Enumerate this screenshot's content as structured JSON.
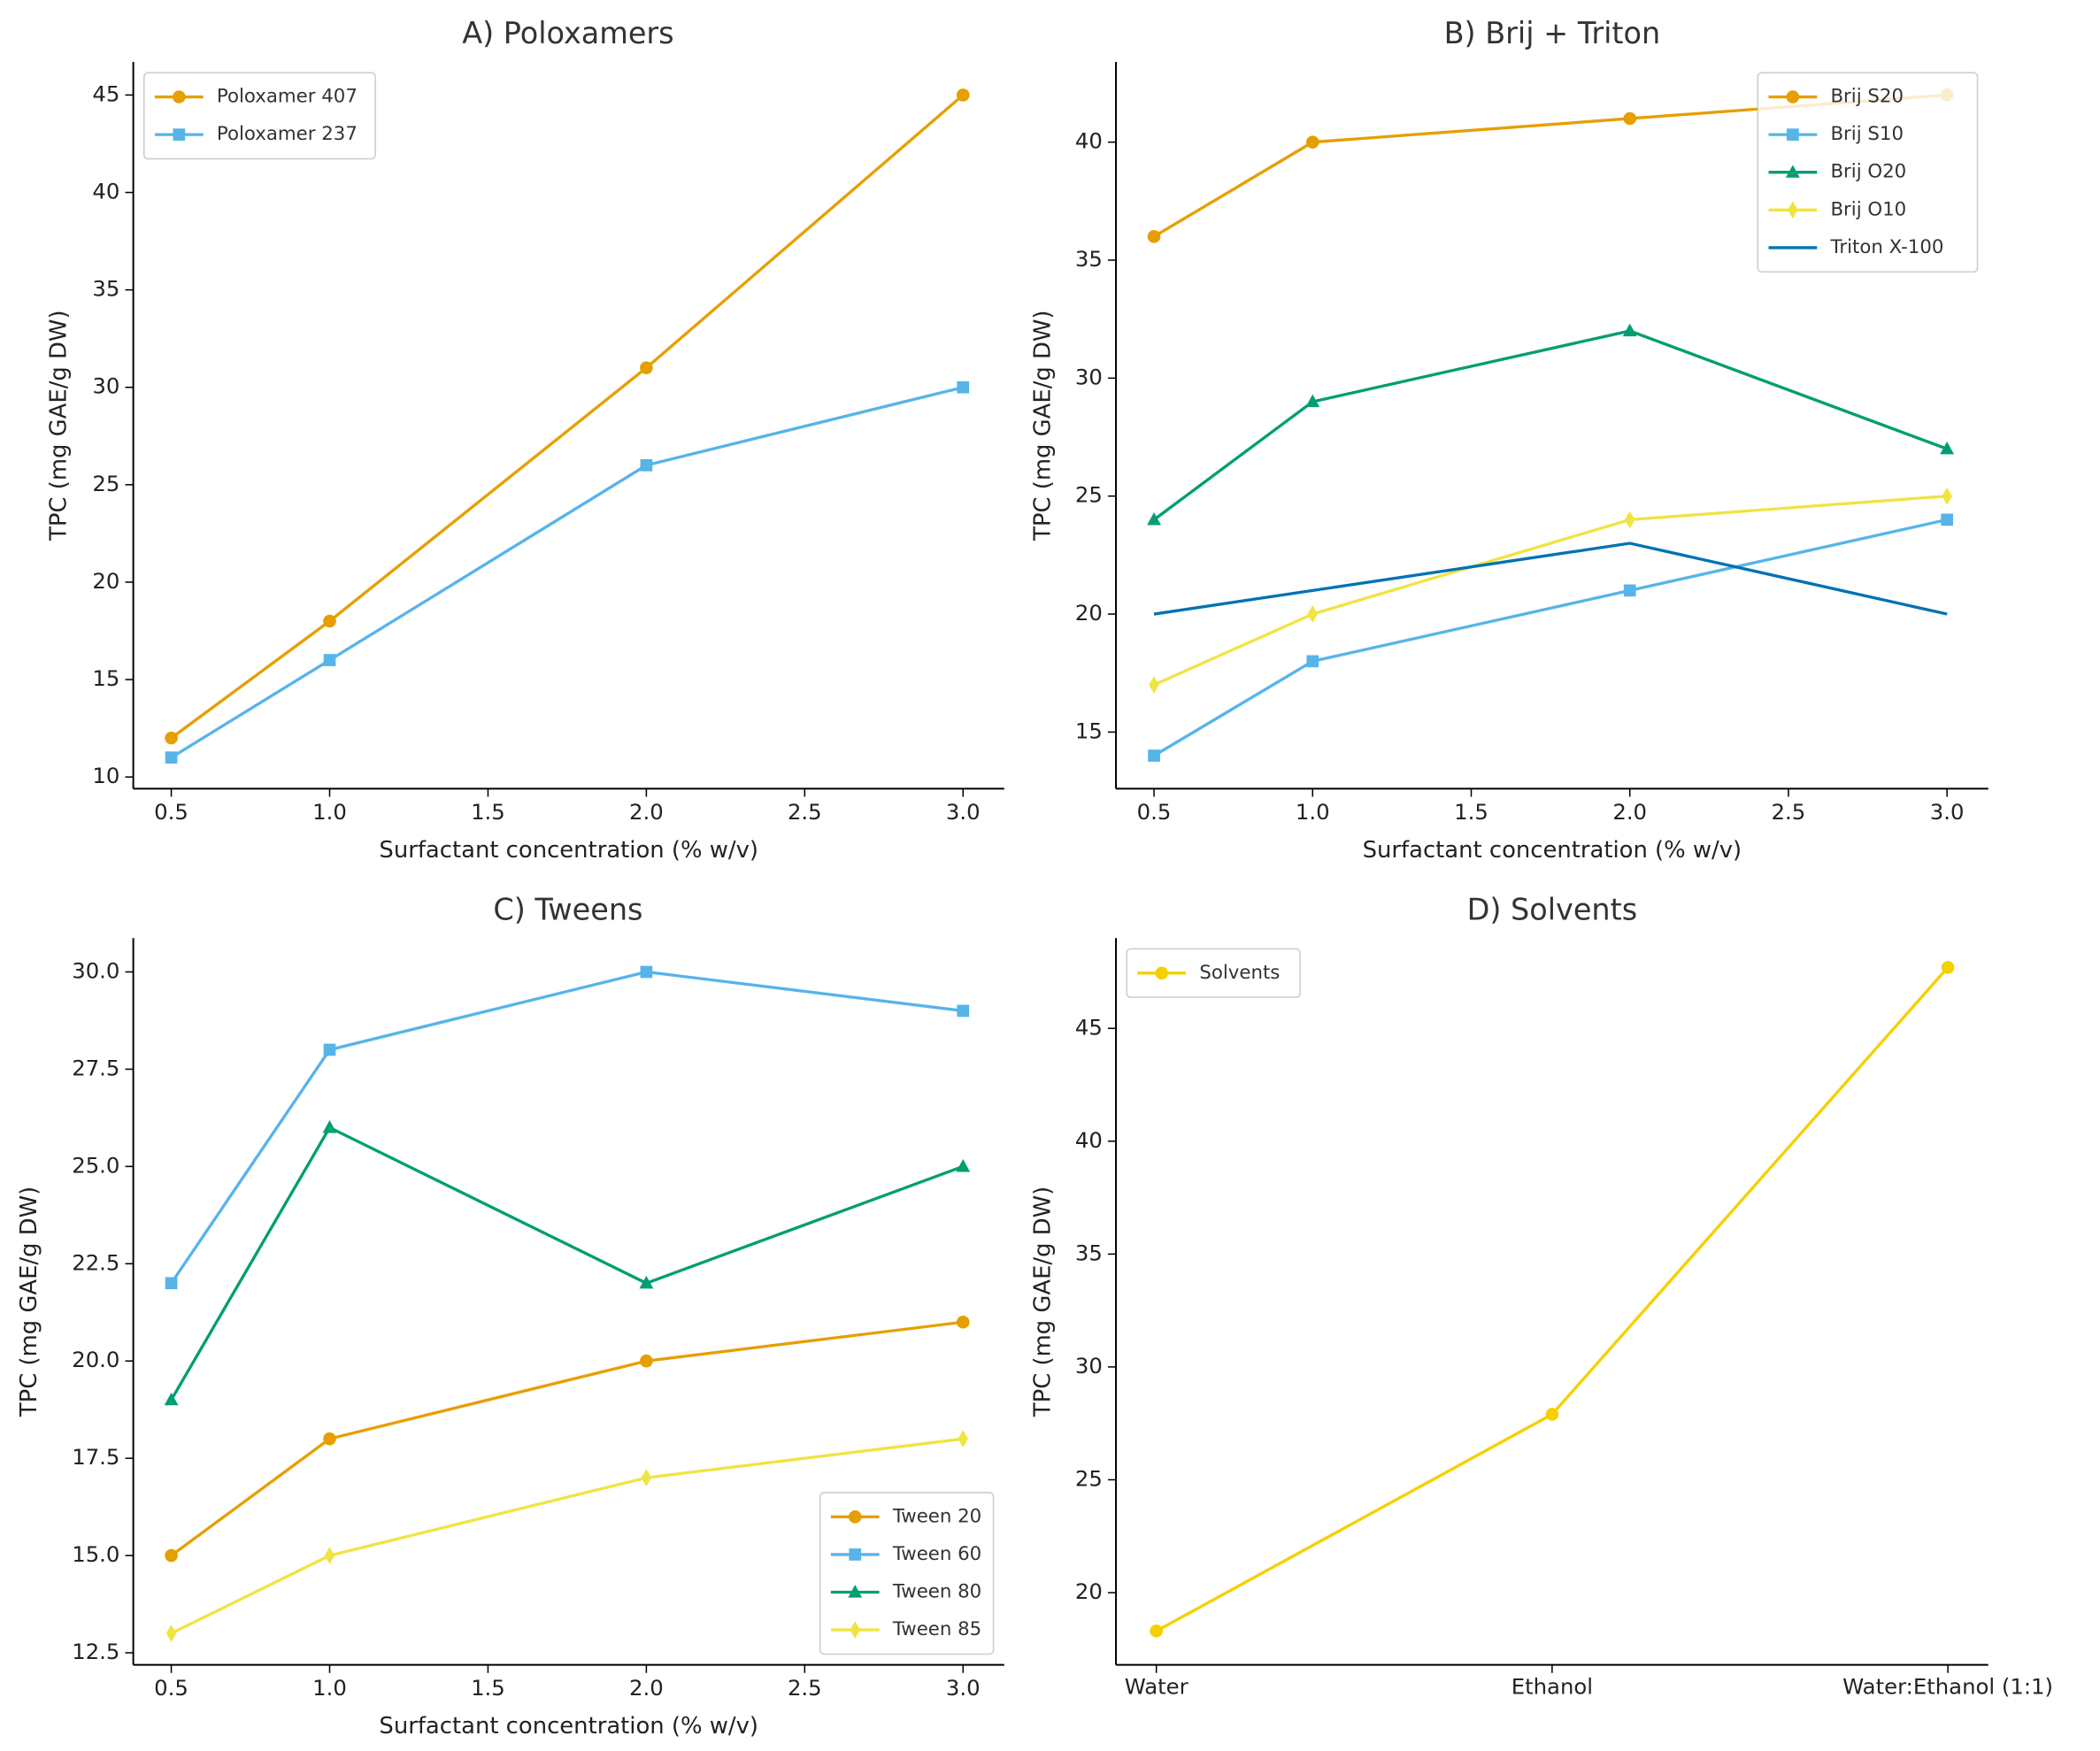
{
  "chart_data": [
    {
      "type": "line",
      "title": "A) Poloxamers",
      "xlabel": "Surfactant concentration (% w/v)",
      "ylabel": "TPC (mg GAE/g DW)",
      "x": [
        0.5,
        1,
        2,
        3
      ],
      "xlim": [
        0.38,
        3.13
      ],
      "ylim": [
        9.4,
        46.7
      ],
      "xticks": [
        0.5,
        {
          "value": 1,
          "label": "1.0"
        },
        1.5,
        {
          "value": 2,
          "label": "2.0"
        },
        2.5,
        {
          "value": 3,
          "label": "3.0"
        }
      ],
      "yticks": [
        10,
        15,
        20,
        25,
        30,
        35,
        40,
        45
      ],
      "legend": "upper left",
      "series": [
        {
          "name": "Poloxamer 407",
          "color": "#E69F00",
          "marker": "circle",
          "values": [
            12,
            18,
            31,
            45
          ]
        },
        {
          "name": "Poloxamer 237",
          "color": "#56B4E9",
          "marker": "square",
          "values": [
            11,
            16,
            26,
            30
          ]
        }
      ]
    },
    {
      "type": "line",
      "title": "B) Brij + Triton",
      "xlabel": "Surfactant concentration (% w/v)",
      "ylabel": "TPC (mg GAE/g DW)",
      "x": [
        0.5,
        1,
        2,
        3
      ],
      "xlim": [
        0.38,
        3.13
      ],
      "ylim": [
        12.6,
        43.4
      ],
      "xticks": [
        0.5,
        {
          "value": 1,
          "label": "1.0"
        },
        1.5,
        {
          "value": 2,
          "label": "2.0"
        },
        2.5,
        {
          "value": 3,
          "label": "3.0"
        }
      ],
      "yticks": [
        15,
        20,
        25,
        30,
        35,
        40
      ],
      "legend": "upper right",
      "series": [
        {
          "name": "Brij S20",
          "color": "#E69F00",
          "marker": "circle",
          "values": [
            36,
            40,
            41,
            42
          ]
        },
        {
          "name": "Brij S10",
          "color": "#56B4E9",
          "marker": "square",
          "values": [
            14,
            18,
            21,
            24
          ]
        },
        {
          "name": "Brij O20",
          "color": "#009E73",
          "marker": "triangle",
          "values": [
            24,
            29,
            32,
            27
          ]
        },
        {
          "name": "Brij O10",
          "color": "#F0E442",
          "marker": "diamond",
          "values": [
            17,
            20,
            24,
            25
          ]
        },
        {
          "name": "Triton X-100",
          "color": "#0072B2",
          "marker": "none",
          "values": [
            20,
            21,
            23,
            20
          ]
        }
      ]
    },
    {
      "type": "line",
      "title": "C) Tweens",
      "xlabel": "Surfactant concentration (% w/v)",
      "ylabel": "TPC (mg GAE/g DW)",
      "x": [
        0.5,
        1,
        2,
        3
      ],
      "xlim": [
        0.38,
        3.13
      ],
      "ylim": [
        12.19,
        30.87
      ],
      "xticks": [
        0.5,
        {
          "value": 1,
          "label": "1.0"
        },
        1.5,
        {
          "value": 2,
          "label": "2.0"
        },
        2.5,
        {
          "value": 3,
          "label": "3.0"
        }
      ],
      "yticks": [
        12.5,
        {
          "value": 15,
          "label": "15.0"
        },
        17.5,
        {
          "value": 20,
          "label": "20.0"
        },
        22.5,
        {
          "value": 25,
          "label": "25.0"
        },
        27.5,
        {
          "value": 30,
          "label": "30.0"
        }
      ],
      "legend": "lower right",
      "series": [
        {
          "name": "Tween 20",
          "color": "#E69F00",
          "marker": "circle",
          "values": [
            15,
            18,
            20,
            21
          ]
        },
        {
          "name": "Tween 60",
          "color": "#56B4E9",
          "marker": "square",
          "values": [
            22,
            28,
            30,
            29
          ]
        },
        {
          "name": "Tween 80",
          "color": "#009E73",
          "marker": "triangle",
          "values": [
            19,
            26,
            22,
            25
          ]
        },
        {
          "name": "Tween 85",
          "color": "#F0E442",
          "marker": "diamond",
          "values": [
            13,
            15,
            17,
            18
          ]
        }
      ]
    },
    {
      "type": "line",
      "title": "D) Solvents",
      "ylabel": "TPC (mg GAE/g DW)",
      "categories": [
        "Water",
        "Ethanol",
        "Water:Ethanol (1:1)"
      ],
      "ylim": [
        16.8,
        49.0
      ],
      "yticks": [
        20,
        25,
        30,
        35,
        40,
        45
      ],
      "legend": "upper left",
      "series": [
        {
          "name": "Solvents",
          "color": "#F5D000",
          "marker": "circle",
          "values": [
            18.3,
            27.9,
            47.7
          ]
        }
      ]
    }
  ]
}
